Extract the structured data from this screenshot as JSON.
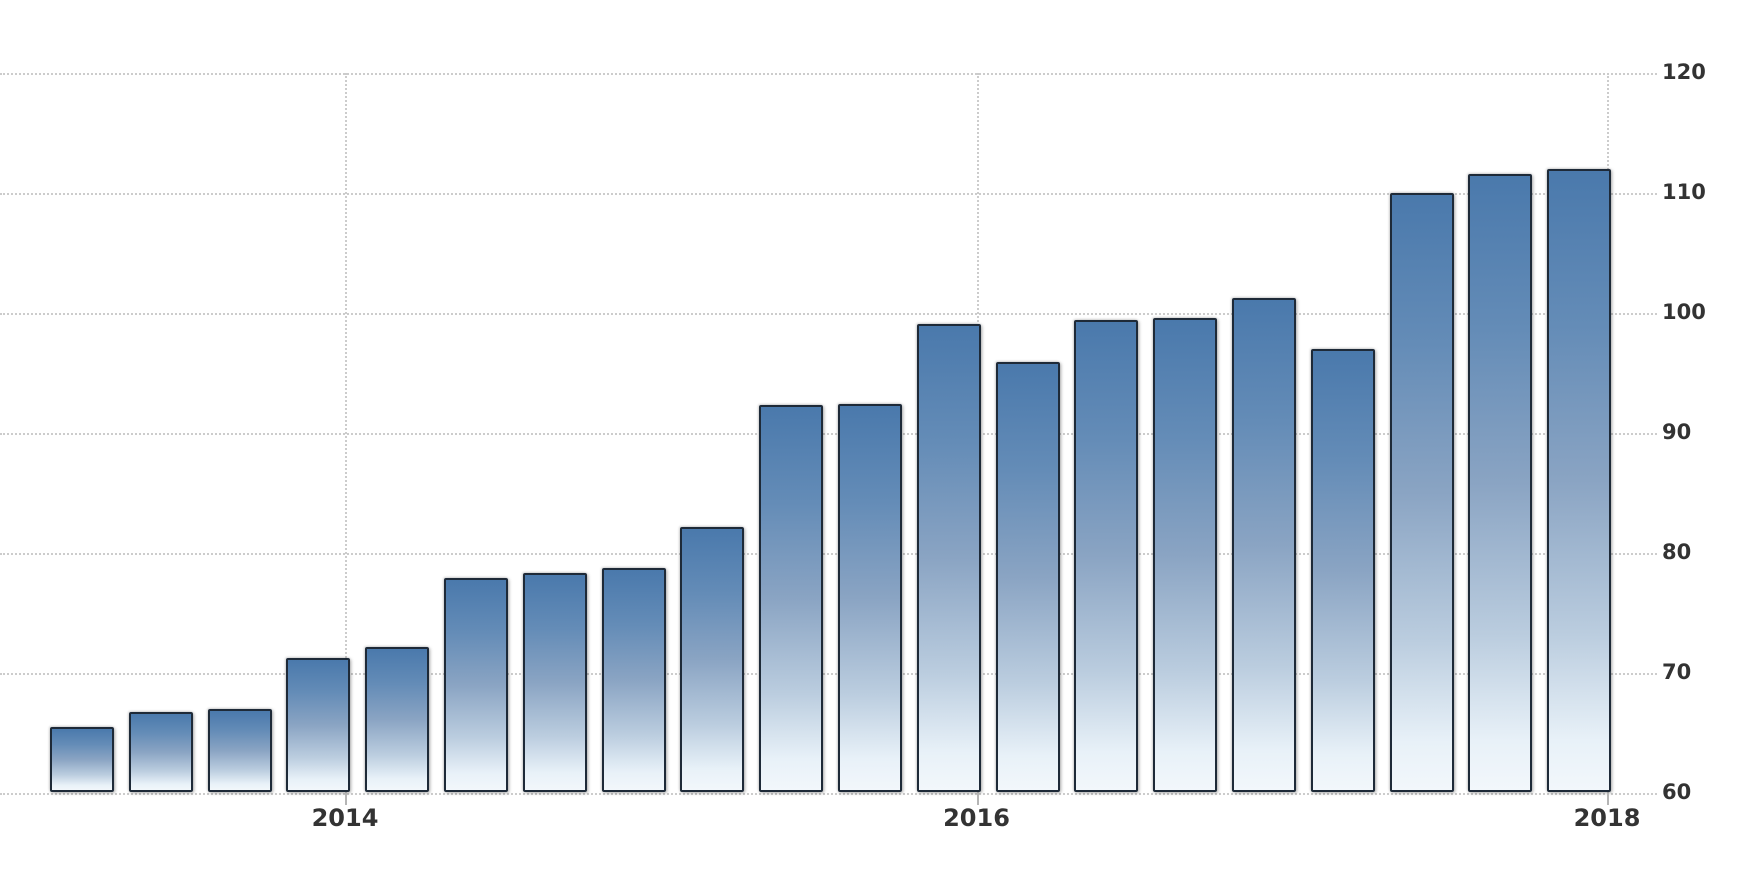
{
  "chart_data": {
    "type": "bar",
    "title": "",
    "xlabel": "",
    "ylabel": "",
    "values": [
      65.5,
      66.7,
      67.0,
      71.2,
      72.1,
      77.9,
      78.3,
      78.7,
      82.1,
      92.3,
      92.4,
      99.1,
      95.9,
      99.4,
      99.6,
      101.2,
      97.0,
      110.0,
      111.6,
      112.0
    ],
    "x_tick_labels": [
      "2014",
      "2016",
      "2018"
    ],
    "y_tick_labels": [
      "120",
      "110",
      "100",
      "90",
      "80",
      "70",
      "60"
    ],
    "ylim": [
      60,
      120
    ],
    "y_axis_side": "right",
    "grid": "dotted",
    "legend": "none",
    "colors": {
      "bar_top": "#4a79ac",
      "bar_bottom": "#f2f7fb",
      "bar_border": "#1e2a38",
      "gridline": "#cccccc",
      "tick_mark": "#b5b5b5",
      "axis_label": "#333333"
    }
  }
}
